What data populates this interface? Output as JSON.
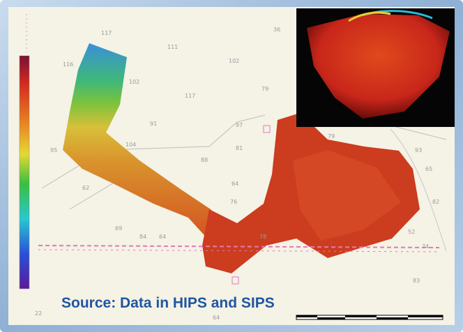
{
  "caption": "Source: Data in HIPS and SIPS",
  "soundings": [
    "117",
    "111",
    "116",
    "102",
    "36",
    "117",
    "102",
    "79",
    "91",
    "104",
    "97",
    "95",
    "88",
    "81",
    "62",
    "76",
    "69",
    "64",
    "78",
    "64",
    "84",
    "93",
    "52",
    "74",
    "83",
    "79",
    "65",
    "82",
    "64",
    "22"
  ]
}
